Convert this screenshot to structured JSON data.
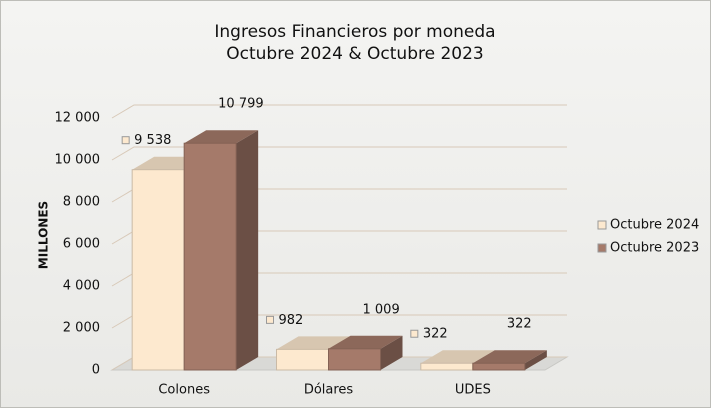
{
  "chart_data": {
    "type": "bar3d",
    "title": "Ingresos Financieros por moneda",
    "subtitle": "Octubre 2024 & Octubre 2023",
    "y_label": "MILLONES",
    "categories": [
      "Colones",
      "Dólares",
      "UDES"
    ],
    "series": [
      {
        "name": "Octubre 2024",
        "color": "#fde9cf",
        "values": [
          9538,
          982,
          322
        ],
        "value_labels": [
          "9 538",
          "982",
          "322"
        ]
      },
      {
        "name": "Octubre 2023",
        "color": "#a57a6a",
        "values": [
          10799,
          1009,
          322
        ],
        "value_labels": [
          "10 799",
          "1 009",
          "322"
        ]
      }
    ],
    "ylim": [
      0,
      12000
    ],
    "yticks": [
      0,
      {
        "value": 2000,
        "label": "2 000"
      },
      {
        "value": 4000,
        "label": "4 000"
      },
      {
        "value": 6000,
        "label": "6 000"
      },
      {
        "value": 8000,
        "label": "8 000"
      },
      {
        "value": 10000,
        "label": "10 000"
      },
      {
        "value": 12000,
        "label": "12 000"
      }
    ],
    "grid": true,
    "legend": "right"
  }
}
